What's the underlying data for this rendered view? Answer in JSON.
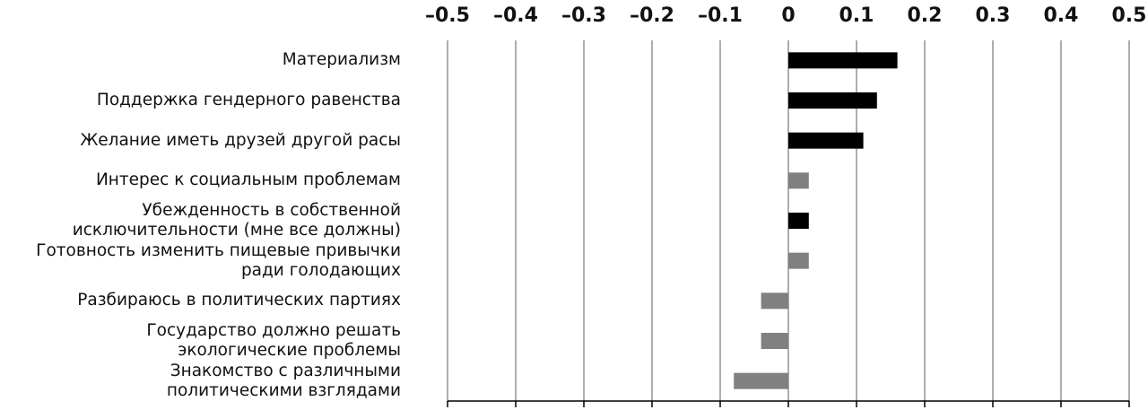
{
  "chart_data": {
    "type": "barh",
    "categories": [
      "Материализм",
      "Поддержка гендерного равенства",
      "Желание иметь друзей другой расы",
      "Интерес к социальным проблемам",
      "Убежденность в собственной\nисключительности (мне все должны)",
      "Готовность изменить пищевые привычки\nради голодающих",
      "Разбираюсь в политических партиях",
      "Государство должно решать\nэкологические проблемы",
      "Знакомство с различными\nполитическими взглядами"
    ],
    "values": [
      0.16,
      0.13,
      0.11,
      0.03,
      0.03,
      0.03,
      -0.04,
      -0.04,
      -0.08
    ],
    "colors": [
      "#000000",
      "#000000",
      "#000000",
      "#808080",
      "#000000",
      "#808080",
      "#808080",
      "#808080",
      "#808080"
    ],
    "xlim": [
      -0.5,
      0.5
    ],
    "xticks": [
      {
        "value": -0.5,
        "label": "–0.5"
      },
      {
        "value": -0.4,
        "label": "–0.4"
      },
      {
        "value": -0.3,
        "label": "–0.3"
      },
      {
        "value": -0.2,
        "label": "–0.2"
      },
      {
        "value": -0.1,
        "label": "–0.1"
      },
      0,
      0.1,
      0.2,
      0.3,
      0.4,
      0.5
    ],
    "grid": true
  }
}
